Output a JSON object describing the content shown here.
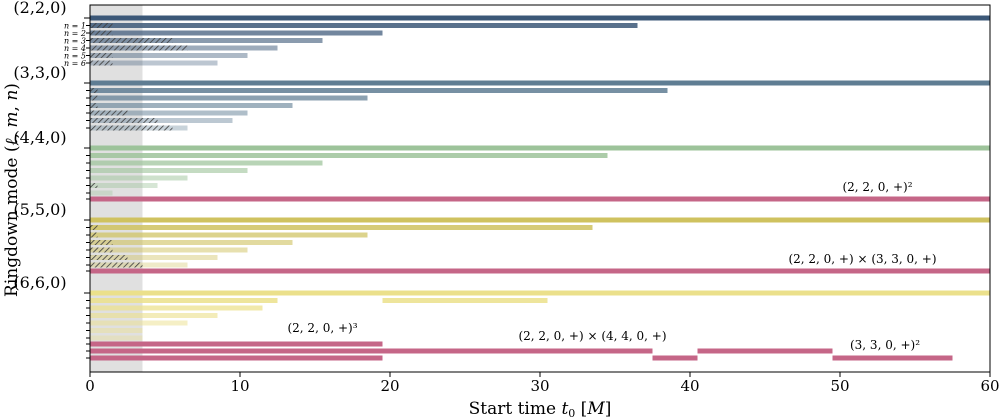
{
  "chart_data": {
    "type": "bar",
    "orientation": "horizontal",
    "xlabel": "Start time t₀ [M]",
    "ylabel": "Ringdown mode (ℓ, m, n)",
    "xlim": [
      0,
      60
    ],
    "x_ticks": [
      0,
      10,
      20,
      30,
      40,
      50,
      60
    ],
    "shaded_band": {
      "x0": 0,
      "x1": 3.5
    },
    "colors": {
      "m220": "#3c5878",
      "m330": "#5f7d93",
      "m440": "#9dc39a",
      "m550": "#cfc25f",
      "m660": "#ebe08b",
      "quadratic": "#c56687",
      "hatch": "#3a3a3a",
      "band": "#e0e0e0"
    },
    "mode_groups": [
      {
        "label": "(2,2,0)",
        "color_key": "m220",
        "overtone_labels": [
          "n = 1",
          "n = 2",
          "n = 3",
          "n = 4",
          "n = 5",
          "n = 6"
        ],
        "bars": [
          {
            "n": 0,
            "segments": [
              [
                0,
                60
              ]
            ]
          },
          {
            "n": 1,
            "segments": [
              [
                0,
                36.5
              ]
            ],
            "hatched_to": 1.5
          },
          {
            "n": 2,
            "segments": [
              [
                0,
                19.5
              ]
            ],
            "hatched_to": 1.5
          },
          {
            "n": 3,
            "segments": [
              [
                0,
                15.5
              ]
            ],
            "hatched_to": 5.5
          },
          {
            "n": 4,
            "segments": [
              [
                0,
                12.5
              ]
            ],
            "hatched_to": 6.5
          },
          {
            "n": 5,
            "segments": [
              [
                0,
                10.5
              ]
            ],
            "hatched_to": 1.5
          },
          {
            "n": 6,
            "segments": [
              [
                0,
                8.5
              ]
            ],
            "hatched_to": 1.5
          }
        ]
      },
      {
        "label": "(3,3,0)",
        "color_key": "m330",
        "bars": [
          {
            "n": 0,
            "segments": [
              [
                0,
                60
              ]
            ]
          },
          {
            "n": 1,
            "segments": [
              [
                0,
                38.5
              ]
            ],
            "hatched_to": 0.5
          },
          {
            "n": 2,
            "segments": [
              [
                0,
                18.5
              ]
            ],
            "hatched_to": 0.5
          },
          {
            "n": 3,
            "segments": [
              [
                0,
                13.5
              ]
            ],
            "hatched_to": 0.5
          },
          {
            "n": 4,
            "segments": [
              [
                0,
                10.5
              ]
            ],
            "hatched_to": 2.5
          },
          {
            "n": 5,
            "segments": [
              [
                0,
                9.5
              ]
            ],
            "hatched_to": 4.5
          },
          {
            "n": 6,
            "segments": [
              [
                0,
                6.5
              ]
            ],
            "hatched_to": 5.5
          }
        ]
      },
      {
        "label": "(4,4,0)",
        "color_key": "m440",
        "bars": [
          {
            "n": 0,
            "segments": [
              [
                0,
                60
              ]
            ]
          },
          {
            "n": 1,
            "segments": [
              [
                0,
                34.5
              ]
            ]
          },
          {
            "n": 2,
            "segments": [
              [
                0,
                15.5
              ]
            ]
          },
          {
            "n": 3,
            "segments": [
              [
                0,
                10.5
              ]
            ]
          },
          {
            "n": 4,
            "segments": [
              [
                0,
                6.5
              ]
            ]
          },
          {
            "n": 5,
            "segments": [
              [
                0,
                4.5
              ]
            ],
            "hatched_to": 0.5
          },
          {
            "n": 6,
            "segments": [
              [
                0,
                1.5
              ]
            ]
          }
        ]
      },
      {
        "label": "(5,5,0)",
        "color_key": "m550",
        "bars": [
          {
            "n": 0,
            "segments": [
              [
                0,
                60
              ]
            ]
          },
          {
            "n": 1,
            "segments": [
              [
                0,
                33.5
              ]
            ],
            "hatched_to": 0.5
          },
          {
            "n": 2,
            "segments": [
              [
                0,
                18.5
              ]
            ],
            "hatched_to": 0.5
          },
          {
            "n": 3,
            "segments": [
              [
                0,
                13.5
              ]
            ],
            "hatched_to": 1.5
          },
          {
            "n": 4,
            "segments": [
              [
                0,
                10.5
              ]
            ],
            "hatched_to": 1.5
          },
          {
            "n": 5,
            "segments": [
              [
                0,
                8.5
              ]
            ],
            "hatched_to": 2.5
          },
          {
            "n": 6,
            "segments": [
              [
                0,
                6.5
              ]
            ],
            "hatched_to": 3.5
          }
        ]
      },
      {
        "label": "(6,6,0)",
        "color_key": "m660",
        "bars": [
          {
            "n": 0,
            "segments": [
              [
                0,
                60
              ]
            ]
          },
          {
            "n": 1,
            "segments": [
              [
                0,
                12.5
              ],
              [
                19.5,
                30.5
              ]
            ]
          },
          {
            "n": 2,
            "segments": [
              [
                0,
                11.5
              ]
            ]
          },
          {
            "n": 3,
            "segments": [
              [
                0,
                8.5
              ]
            ]
          },
          {
            "n": 4,
            "segments": [
              [
                0,
                6.5
              ]
            ]
          },
          {
            "n": 5,
            "segments": [
              [
                0,
                3.5
              ]
            ]
          },
          {
            "n": 6,
            "segments": [
              [
                0,
                3.5
              ]
            ]
          }
        ]
      }
    ],
    "quadratic_modes": [
      {
        "label": "(2, 2, 0, +)²",
        "segments": [
          [
            0,
            60
          ]
        ],
        "label_x": 52.5,
        "row": "after_440"
      },
      {
        "label": "(2, 2, 0, +) × (3, 3, 0, +)",
        "segments": [
          [
            0,
            60
          ]
        ],
        "label_x": 51.5,
        "row": "after_550"
      },
      {
        "label": "(2, 2, 0, +)³",
        "segments": [
          [
            0,
            19.5
          ]
        ],
        "label_x": 15.5,
        "row": "bottom_1"
      },
      {
        "label": "(2, 2, 0, +) × (4, 4, 0, +)",
        "segments": [
          [
            0,
            37.5
          ],
          [
            37.5,
            40.5
          ],
          [
            40.5,
            49.5
          ]
        ],
        "label_x": 33.5,
        "row": "bottom_2"
      },
      {
        "label": "(3, 3, 0, +)²",
        "segments": [
          [
            49.5,
            57.5
          ]
        ],
        "label_x": 53,
        "row": "bottom_3"
      }
    ],
    "bottom_rows": [
      {
        "segments": [
          [
            0,
            19.5
          ]
        ]
      },
      {
        "segments": [
          [
            0,
            37.5
          ],
          [
            40.5,
            49.5
          ]
        ]
      },
      {
        "segments": [
          [
            0,
            19.5
          ],
          [
            37.5,
            40.5
          ],
          [
            49.5,
            57.5
          ]
        ]
      }
    ]
  }
}
